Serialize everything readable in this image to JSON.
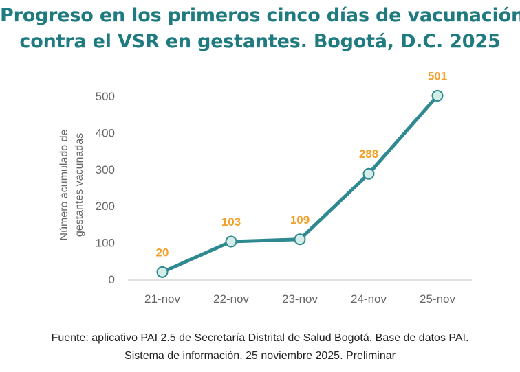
{
  "title": {
    "line1": "Progreso en los primeros cinco días de vacunación",
    "line2": "contra el VSR en gestantes. Bogotá, D.C. 2025"
  },
  "footer": {
    "line1": "Fuente: aplicativo PAI 2.5 de Secretaría Distrital de Salud Bogotá. Base de datos PAI.",
    "line2": "Sistema de información. 25 noviembre 2025. Preliminar"
  },
  "colors": {
    "title": "#1f7b80",
    "line": "#2e8a90",
    "marker_fill": "#d4ede6",
    "label": "#f4a12a",
    "axis_text": "#666666",
    "axis_line": "#d9d9d9"
  },
  "chart_data": {
    "type": "line",
    "title": "Progreso en los primeros cinco días de vacunación contra el VSR en gestantes. Bogotá, D.C. 2025",
    "categories": [
      "21-nov",
      "22-nov",
      "23-nov",
      "24-nov",
      "25-nov"
    ],
    "series": [
      {
        "name": "Número acumulado de gestantes vacunadas",
        "values": [
          20,
          103,
          109,
          288,
          501
        ]
      }
    ],
    "data_labels": [
      "20",
      "103",
      "109",
      "288",
      "501"
    ],
    "xlabel": "",
    "ylabel_lines": [
      "Número acumulado de",
      "gestantes vacunadas"
    ],
    "ylim": [
      0,
      500
    ],
    "yticks": [
      0,
      100,
      200,
      300,
      400,
      500
    ],
    "ytick_labels": [
      "0",
      "100",
      "200",
      "300",
      "400",
      "500"
    ],
    "grid": false,
    "legend": "none"
  }
}
